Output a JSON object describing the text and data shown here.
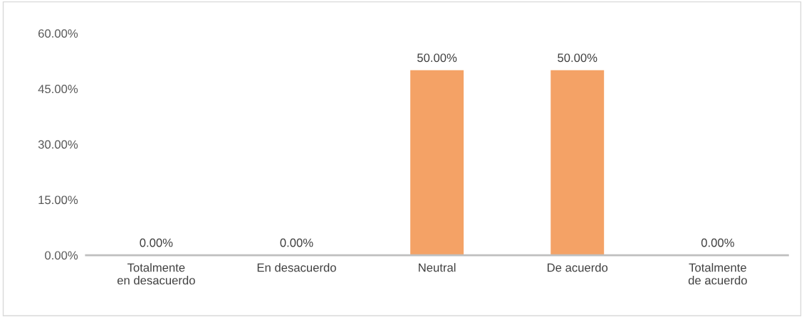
{
  "chart_data": {
    "type": "bar",
    "categories": [
      "Totalmente en desacuerdo",
      "En desacuerdo",
      "Neutral",
      "De acuerdo",
      "Totalmente de acuerdo"
    ],
    "values": [
      0,
      0,
      50,
      50,
      0
    ],
    "color": "#f4a266",
    "value_labels": [
      "0.00%",
      "0.00%",
      "50.00%",
      "50.00%",
      "0.00%"
    ],
    "ylim": [
      0,
      60
    ],
    "yticks": [
      {
        "value": 0,
        "label": "0.00%"
      },
      {
        "value": 15,
        "label": "15.00%"
      },
      {
        "value": 30,
        "label": "30.00%"
      },
      {
        "value": 45,
        "label": "45.00%"
      },
      {
        "value": 60,
        "label": "60.00%"
      }
    ],
    "grid": false,
    "legend": false
  }
}
